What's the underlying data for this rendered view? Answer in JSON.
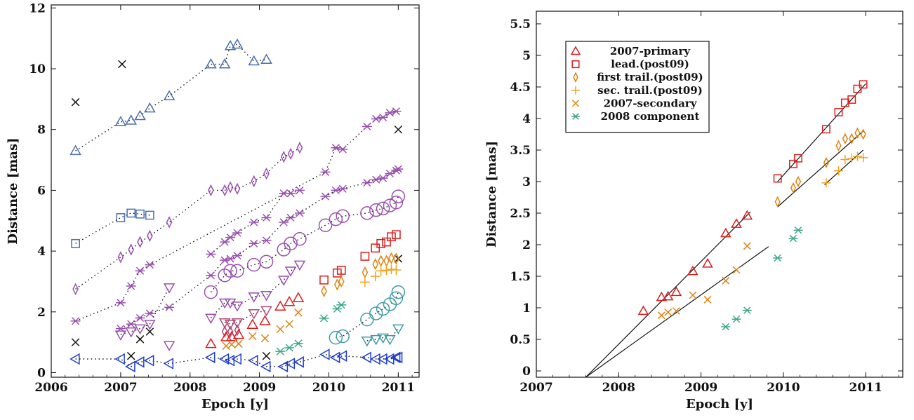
{
  "chart_data": [
    {
      "type": "scatter",
      "xlabel": "Epoch [y]",
      "ylabel": "Distance [mas]",
      "xlim": [
        2006,
        2011.3
      ],
      "ylim": [
        -0.15,
        12.1
      ],
      "xticks": [
        "2006",
        "2007",
        "2008",
        "2009",
        "2010",
        "2011"
      ],
      "yticks": [
        "0",
        "2",
        "4",
        "6",
        "8",
        "10",
        "12"
      ],
      "xtick_values": [
        2006,
        2007,
        2008,
        2009,
        2010,
        2011
      ],
      "ytick_values": [
        0,
        2,
        4,
        6,
        8,
        10,
        12
      ],
      "grid": false,
      "series": [
        {
          "color": "#4a6fb0",
          "marker": "triangle-up",
          "connected": true,
          "x": [
            2006.35,
            2007.0,
            2007.15,
            2007.28,
            2007.42,
            2007.7,
            2008.3,
            2008.5,
            2008.58,
            2008.68,
            2008.92,
            2009.1
          ],
          "y": [
            7.3,
            8.25,
            8.3,
            8.45,
            8.7,
            9.1,
            10.15,
            10.15,
            10.75,
            10.8,
            10.25,
            10.3
          ]
        },
        {
          "color": "#111111",
          "marker": "x",
          "connected": false,
          "x": [
            2006.35,
            2007.02,
            2011.0,
            2006.35,
            2007.15,
            2007.28,
            2007.42,
            2009.1,
            2011.0
          ],
          "y": [
            8.9,
            10.15,
            8.0,
            1.0,
            0.55,
            1.1,
            1.35,
            0.55,
            3.75
          ]
        },
        {
          "color": "#4a6fb0",
          "marker": "square",
          "connected": true,
          "x": [
            2006.35,
            2007.0,
            2007.15,
            2007.28,
            2007.42
          ],
          "y": [
            4.25,
            5.1,
            5.25,
            5.22,
            5.18
          ]
        },
        {
          "color": "#9a4fb0",
          "marker": "diamond",
          "connected": true,
          "x": [
            2006.35,
            2007.0,
            2007.15,
            2007.28,
            2007.42,
            2007.7,
            2008.3,
            2008.5,
            2008.58,
            2008.68,
            2008.92,
            2009.1,
            2009.35,
            2009.45,
            2009.58
          ],
          "y": [
            2.75,
            3.8,
            4.05,
            4.3,
            4.5,
            4.95,
            6.0,
            6.0,
            6.1,
            6.05,
            6.3,
            6.55,
            7.1,
            7.2,
            7.4
          ]
        },
        {
          "color": "#9a4fb0",
          "marker": "star",
          "connected": true,
          "x": [
            2006.35,
            2007.0,
            2007.15,
            2007.28,
            2007.42,
            2009.95,
            2010.1,
            2010.2,
            2010.55,
            2010.68,
            2010.78,
            2010.88,
            2010.97
          ],
          "y": [
            1.7,
            2.3,
            2.85,
            3.35,
            3.55,
            6.6,
            7.4,
            7.35,
            8.1,
            8.35,
            8.4,
            8.55,
            8.6
          ]
        },
        {
          "color": "#9a4fb0",
          "marker": "star",
          "connected": true,
          "x": [
            2007.0,
            2007.15,
            2007.28,
            2007.42,
            2007.7,
            2008.3,
            2008.5,
            2008.58,
            2008.68,
            2008.92,
            2009.1,
            2009.35,
            2009.45,
            2009.58,
            2009.95,
            2010.1,
            2010.2,
            2010.55,
            2010.68,
            2010.78,
            2010.88,
            2010.97,
            2011.0
          ],
          "y": [
            1.45,
            1.6,
            1.8,
            1.95,
            2.15,
            3.2,
            3.7,
            3.75,
            3.85,
            4.25,
            4.35,
            4.95,
            5.1,
            5.25,
            5.8,
            6.0,
            6.05,
            6.25,
            6.35,
            6.4,
            6.55,
            6.65,
            6.7
          ]
        },
        {
          "color": "#9a4fb0",
          "marker": "star",
          "connected": true,
          "x": [
            2008.3,
            2008.5,
            2008.58,
            2008.68,
            2008.92,
            2009.1,
            2009.35,
            2009.45,
            2009.58
          ],
          "y": [
            3.9,
            4.3,
            4.45,
            4.6,
            4.95,
            5.1,
            5.9,
            5.9,
            6.0
          ]
        },
        {
          "color": "#9a4fb0",
          "marker": "triangle-down",
          "connected": true,
          "x": [
            2007.0,
            2007.15,
            2007.28,
            2007.42,
            2007.7
          ],
          "y": [
            1.25,
            1.35,
            1.45,
            1.6,
            2.8
          ]
        },
        {
          "color": "#9a4fb0",
          "marker": "circle",
          "connected": true,
          "x": [
            2008.3,
            2008.5,
            2008.58,
            2008.68,
            2008.92,
            2009.1,
            2009.35,
            2009.45,
            2009.58,
            2009.95,
            2010.1,
            2010.2,
            2010.55,
            2010.68,
            2010.78,
            2010.88,
            2010.97,
            2011.0
          ],
          "y": [
            2.65,
            3.2,
            3.35,
            3.35,
            3.55,
            3.65,
            4.05,
            4.25,
            4.4,
            4.85,
            5.05,
            5.15,
            5.25,
            5.35,
            5.4,
            5.5,
            5.6,
            5.8
          ]
        },
        {
          "color": "#9a4fb0",
          "marker": "triangle-down",
          "connected": true,
          "x": [
            2008.3,
            2008.5,
            2008.58,
            2008.68,
            2008.92,
            2009.1,
            2009.35,
            2009.45,
            2009.58
          ],
          "y": [
            1.8,
            2.3,
            2.3,
            2.2,
            2.5,
            2.55,
            3.05,
            3.35,
            3.55
          ]
        },
        {
          "color": "#b04a7a",
          "marker": "triangle-down",
          "connected": true,
          "x": [
            2008.5,
            2008.58,
            2008.68,
            2008.92,
            2009.1
          ],
          "y": [
            1.65,
            1.6,
            1.65,
            1.95,
            2.05
          ]
        },
        {
          "color": "#b04a7a",
          "marker": "diamond",
          "connected": false,
          "x": [
            2008.5,
            2008.58,
            2008.68
          ],
          "y": [
            1.35,
            1.35,
            1.4
          ]
        },
        {
          "color": "#9a4fb0",
          "marker": "triangle-down",
          "connected": true,
          "x": [
            2007.7
          ],
          "y": [
            0.9
          ]
        },
        {
          "color": "#3f9aa6",
          "marker": "circle",
          "connected": true,
          "x": [
            2010.1,
            2010.2,
            2010.55,
            2010.68,
            2010.78,
            2010.88,
            2010.97,
            2011.0
          ],
          "y": [
            1.15,
            1.2,
            1.75,
            1.95,
            2.1,
            2.25,
            2.45,
            2.65
          ]
        },
        {
          "color": "#3f9aa6",
          "marker": "triangle-down",
          "connected": true,
          "x": [
            2010.55,
            2010.68,
            2010.78,
            2010.88,
            2011.0
          ],
          "y": [
            1.05,
            1.1,
            1.15,
            1.1,
            1.45
          ]
        },
        {
          "color": "#1f3fd0",
          "marker": "triangle-left",
          "connected": true,
          "x": [
            2006.35,
            2007.0,
            2007.15,
            2007.28,
            2007.42,
            2007.7,
            2008.3,
            2008.5,
            2008.58,
            2008.68,
            2008.92,
            2009.1,
            2009.35,
            2009.45,
            2009.58,
            2009.95,
            2010.1,
            2010.2,
            2010.55,
            2010.68,
            2010.78,
            2010.88,
            2010.97,
            2011.0
          ],
          "y": [
            0.45,
            0.45,
            0.2,
            0.35,
            0.4,
            0.3,
            0.5,
            0.45,
            0.4,
            0.45,
            0.4,
            0.2,
            0.2,
            0.3,
            0.35,
            0.6,
            0.5,
            0.55,
            0.5,
            0.45,
            0.45,
            0.45,
            0.5,
            0.5
          ]
        },
        {
          "name": "2007-primary",
          "color": "#d81e1e",
          "marker": "triangle-up",
          "connected": false,
          "x": [
            2008.3,
            2008.52,
            2008.6,
            2008.7,
            2008.9,
            2009.08,
            2009.3,
            2009.43,
            2009.56
          ],
          "y": [
            0.95,
            1.17,
            1.18,
            1.25,
            1.58,
            1.7,
            2.18,
            2.33,
            2.46
          ]
        },
        {
          "name": "lead.(post09)",
          "color": "#d81e1e",
          "marker": "square",
          "connected": false,
          "x": [
            2009.93,
            2010.12,
            2010.18,
            2010.52,
            2010.67,
            2010.75,
            2010.83,
            2010.9,
            2010.97
          ],
          "y": [
            3.05,
            3.28,
            3.37,
            3.83,
            4.1,
            4.25,
            4.3,
            4.47,
            4.54
          ]
        },
        {
          "name": "first trail.(post09)",
          "color": "#e0820e",
          "marker": "diamond",
          "connected": false,
          "x": [
            2009.93,
            2010.12,
            2010.18,
            2010.52,
            2010.67,
            2010.75,
            2010.83,
            2010.9,
            2010.97
          ],
          "y": [
            2.68,
            2.9,
            3.0,
            3.3,
            3.57,
            3.68,
            3.68,
            3.77,
            3.75
          ]
        },
        {
          "name": "sec. trail.(post09)",
          "color": "#f2a21a",
          "marker": "plus",
          "connected": false,
          "x": [
            2010.52,
            2010.67,
            2010.75,
            2010.83,
            2010.9,
            2010.97
          ],
          "y": [
            2.98,
            3.17,
            3.35,
            3.37,
            3.4,
            3.38
          ]
        },
        {
          "name": "2007-secondary",
          "color": "#e0820e",
          "marker": "x",
          "connected": false,
          "x": [
            2008.52,
            2008.6,
            2008.7,
            2008.9,
            2009.08,
            2009.3,
            2009.43,
            2009.56
          ],
          "y": [
            0.88,
            0.93,
            0.95,
            1.2,
            1.13,
            1.43,
            1.6,
            1.98
          ]
        },
        {
          "name": "2008 component",
          "color": "#3aa88a",
          "marker": "star",
          "connected": false,
          "x": [
            2009.3,
            2009.43,
            2009.56,
            2009.93,
            2010.12,
            2010.18
          ],
          "y": [
            0.7,
            0.82,
            0.96,
            1.79,
            2.1,
            2.23
          ]
        }
      ]
    },
    {
      "type": "scatter",
      "xlabel": "Epoch [y]",
      "ylabel": "Distance [mas]",
      "xlim": [
        2007,
        2011.45
      ],
      "ylim": [
        -0.1,
        5.7
      ],
      "xticks": [
        "2007",
        "2008",
        "2009",
        "2010",
        "2011"
      ],
      "yticks": [
        "0",
        "0.5",
        "1",
        "1.5",
        "2",
        "2.5",
        "3",
        "3.5",
        "4",
        "4.5",
        "5",
        "5.5"
      ],
      "xtick_values": [
        2007,
        2008,
        2009,
        2010,
        2011
      ],
      "ytick_values": [
        0,
        0.5,
        1,
        1.5,
        2,
        2.5,
        3,
        3.5,
        4,
        4.5,
        5,
        5.5
      ],
      "grid": false,
      "legend": "top-left",
      "series": [
        {
          "name": "2007-primary",
          "color": "#d81e1e",
          "marker": "triangle-up",
          "x": [
            2008.3,
            2008.52,
            2008.6,
            2008.7,
            2008.9,
            2009.08,
            2009.3,
            2009.43,
            2009.56
          ],
          "y": [
            0.95,
            1.17,
            1.18,
            1.25,
            1.58,
            1.7,
            2.18,
            2.33,
            2.46
          ]
        },
        {
          "name": "lead.(post09)",
          "color": "#d81e1e",
          "marker": "square",
          "x": [
            2009.93,
            2010.12,
            2010.18,
            2010.52,
            2010.67,
            2010.75,
            2010.83,
            2010.9,
            2010.97
          ],
          "y": [
            3.05,
            3.28,
            3.37,
            3.83,
            4.1,
            4.25,
            4.3,
            4.47,
            4.54
          ]
        },
        {
          "name": "first trail.(post09)",
          "color": "#e0820e",
          "marker": "diamond",
          "x": [
            2009.93,
            2010.12,
            2010.18,
            2010.52,
            2010.67,
            2010.75,
            2010.83,
            2010.9,
            2010.97
          ],
          "y": [
            2.68,
            2.9,
            3.0,
            3.3,
            3.57,
            3.68,
            3.68,
            3.77,
            3.75
          ]
        },
        {
          "name": "sec. trail.(post09)",
          "color": "#f2a21a",
          "marker": "plus",
          "x": [
            2010.52,
            2010.67,
            2010.75,
            2010.83,
            2010.9,
            2010.97
          ],
          "y": [
            2.98,
            3.17,
            3.35,
            3.37,
            3.4,
            3.38
          ]
        },
        {
          "name": "2007-secondary",
          "color": "#e0820e",
          "marker": "x",
          "x": [
            2008.52,
            2008.6,
            2008.7,
            2008.9,
            2009.08,
            2009.3,
            2009.43,
            2009.56
          ],
          "y": [
            0.88,
            0.93,
            0.95,
            1.2,
            1.13,
            1.43,
            1.6,
            1.98
          ]
        },
        {
          "name": "2008 component",
          "color": "#3aa88a",
          "marker": "star",
          "x": [
            2009.3,
            2009.43,
            2009.56,
            2009.93,
            2010.12,
            2010.18
          ],
          "y": [
            0.7,
            0.82,
            0.96,
            1.79,
            2.1,
            2.23
          ]
        }
      ],
      "fit_lines": [
        {
          "x": [
            2007.6,
            2009.6
          ],
          "y": [
            -0.1,
            2.52
          ]
        },
        {
          "x": [
            2007.6,
            2009.82
          ],
          "y": [
            -0.1,
            1.97
          ]
        },
        {
          "x": [
            2009.93,
            2011.0
          ],
          "y": [
            3.0,
            4.55
          ]
        },
        {
          "x": [
            2009.93,
            2010.97
          ],
          "y": [
            2.6,
            3.8
          ]
        },
        {
          "x": [
            2010.5,
            2010.97
          ],
          "y": [
            2.95,
            3.5
          ]
        }
      ]
    }
  ]
}
